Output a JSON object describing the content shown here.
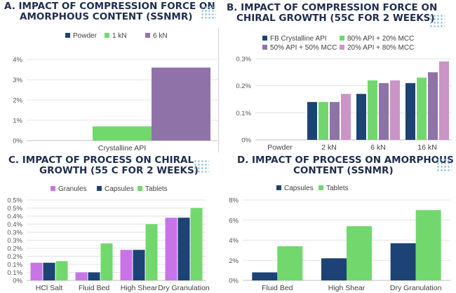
{
  "colors": {
    "navy": "#1d4275",
    "green": "#72d86d",
    "purple": "#8f72a8",
    "pink": "#cb94c6",
    "magenta": "#c874e6",
    "title": "#1f2c4f"
  },
  "panels": {
    "a": {
      "title_line1": "A. IMPACT OF COMPRESSION FORCE ON",
      "title_line2": "AMORPHOUS CONTENT (SSNMR)"
    },
    "b": {
      "title_line1": "B. IMPACT OF COMPRESSION FORCE ON",
      "title_line2": "CHIRAL GROWTH (55C FOR 2 WEEKS)"
    },
    "c": {
      "title_line1": "C. IMPACT OF PROCESS ON CHIRAL",
      "title_line2": "GROWTH (55 C FOR 2 WEEKS)"
    },
    "d": {
      "title_line1": "D. IMPACT OF PROCESS ON AMORPHOUS",
      "title_line2": "CONTENT (SSNMR)"
    }
  },
  "chart_data": [
    {
      "id": "a",
      "type": "bar",
      "categories": [
        "Crystalline API"
      ],
      "series": [
        {
          "name": "Powder",
          "values": [
            0
          ],
          "color": "#1d4275"
        },
        {
          "name": "1 kN",
          "values": [
            0.7
          ],
          "color": "#72d86d"
        },
        {
          "name": "6 kN",
          "values": [
            3.6
          ],
          "color": "#8f72a8"
        }
      ],
      "yticks": [
        "0%",
        "1%",
        "2%",
        "3%",
        "4%"
      ],
      "ylim": [
        0,
        4
      ],
      "grid": true,
      "legend": "top"
    },
    {
      "id": "b",
      "type": "bar",
      "categories": [
        "Powder",
        "2 kN",
        "6 kN",
        "16 kN"
      ],
      "series": [
        {
          "name": "FB Crystalline API",
          "values": [
            0,
            0.14,
            0.17,
            0.21
          ],
          "color": "#1d4275"
        },
        {
          "name": "80% API + 20% MCC",
          "values": [
            0,
            0.14,
            0.22,
            0.23
          ],
          "color": "#72d86d"
        },
        {
          "name": "50% API + 50% MCC",
          "values": [
            0,
            0.14,
            0.21,
            0.25
          ],
          "color": "#8f72a8"
        },
        {
          "name": "20% API + 80% MCC",
          "values": [
            0,
            0.17,
            0.22,
            0.29
          ],
          "color": "#cb94c6"
        }
      ],
      "yticks": [
        "0%",
        "0.1%",
        "0.2%",
        "0.3%"
      ],
      "ylim": [
        0,
        0.3
      ],
      "grid": true,
      "legend": "top"
    },
    {
      "id": "c",
      "type": "bar",
      "categories": [
        "HCl Salt",
        "Fluid Bed",
        "High Shear",
        "Dry Granulation"
      ],
      "series": [
        {
          "name": "Granules",
          "values": [
            0.11,
            0.05,
            0.19,
            0.39
          ],
          "color": "#c874e6"
        },
        {
          "name": "Capsules",
          "values": [
            0.11,
            0.05,
            0.19,
            0.39
          ],
          "color": "#1d4275"
        },
        {
          "name": "Tablets",
          "values": [
            0.12,
            0.23,
            0.35,
            0.45
          ],
          "color": "#72d86d"
        }
      ],
      "yticks": [
        "0%",
        "0.1%",
        "0.1%",
        "0.2%",
        "0.2%",
        "0.3%",
        "0.3%",
        "0.4%",
        "0.4%",
        "0.5%",
        "0.5%"
      ],
      "ylim": [
        0,
        0.5
      ],
      "grid": true,
      "legend": "top"
    },
    {
      "id": "d",
      "type": "bar",
      "categories": [
        "Fluid Bed",
        "High Shear",
        "Dry Granulation"
      ],
      "series": [
        {
          "name": "Capsules",
          "values": [
            0.8,
            2.2,
            3.7
          ],
          "color": "#1d4275"
        },
        {
          "name": "Tablets",
          "values": [
            3.4,
            5.4,
            7.0
          ],
          "color": "#72d86d"
        }
      ],
      "yticks": [
        "0%",
        "2%",
        "4%",
        "6%",
        "8%"
      ],
      "ylim": [
        0,
        8
      ],
      "grid": true,
      "legend": "top"
    }
  ]
}
